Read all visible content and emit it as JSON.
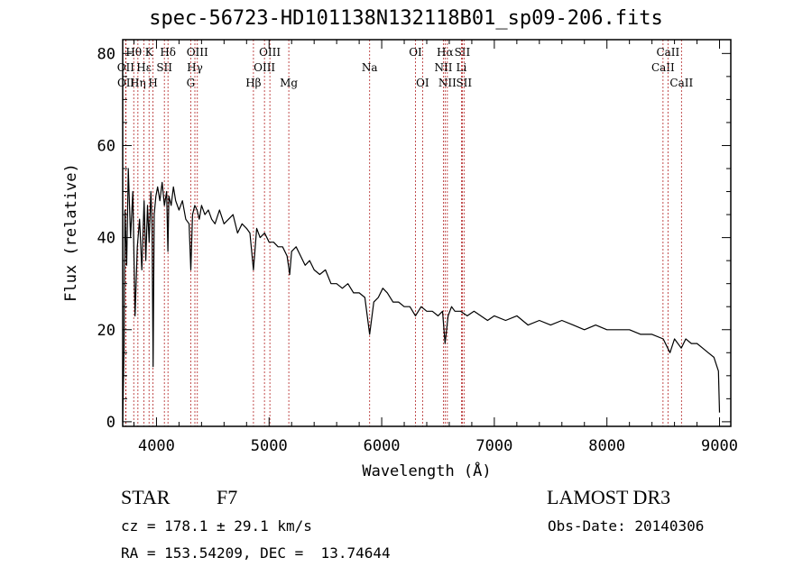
{
  "chart_data": {
    "type": "line",
    "title": "spec-56723-HD101138N132118B01_sp09-206.fits",
    "xlabel": "Wavelength (Å)",
    "ylabel": "Flux (relative)",
    "xlim": [
      3700,
      9100
    ],
    "ylim": [
      -1,
      83
    ],
    "xticks": [
      4000,
      5000,
      6000,
      7000,
      8000,
      9000
    ],
    "yticks": [
      0,
      20,
      40,
      60,
      80
    ],
    "grid": false,
    "series": [
      {
        "name": "flux",
        "x": [
          3700,
          3712,
          3720,
          3735,
          3750,
          3770,
          3790,
          3810,
          3830,
          3850,
          3870,
          3890,
          3905,
          3920,
          3935,
          3950,
          3960,
          3970,
          3980,
          3995,
          4010,
          4030,
          4050,
          4070,
          4090,
          4101,
          4110,
          4130,
          4150,
          4170,
          4200,
          4230,
          4260,
          4290,
          4305,
          4320,
          4340,
          4360,
          4380,
          4400,
          4430,
          4460,
          4490,
          4520,
          4560,
          4600,
          4640,
          4680,
          4720,
          4760,
          4800,
          4830,
          4861,
          4890,
          4920,
          4960,
          5000,
          5040,
          5080,
          5120,
          5160,
          5183,
          5200,
          5240,
          5280,
          5320,
          5360,
          5400,
          5450,
          5500,
          5550,
          5600,
          5650,
          5700,
          5750,
          5800,
          5850,
          5893,
          5930,
          5970,
          6010,
          6050,
          6100,
          6150,
          6200,
          6250,
          6300,
          6350,
          6400,
          6450,
          6500,
          6540,
          6563,
          6590,
          6620,
          6650,
          6700,
          6760,
          6820,
          6880,
          6940,
          7000,
          7100,
          7200,
          7300,
          7400,
          7500,
          7600,
          7700,
          7800,
          7900,
          8000,
          8100,
          8200,
          8300,
          8400,
          8500,
          8560,
          8600,
          8660,
          8700,
          8750,
          8800,
          8850,
          8900,
          8950,
          8990,
          9000
        ],
        "y": [
          0,
          16,
          46,
          34,
          55,
          40,
          50,
          23,
          38,
          44,
          33,
          48,
          35,
          47,
          39,
          50,
          43,
          12,
          45,
          49,
          51,
          48,
          52,
          47,
          50,
          37,
          49,
          47,
          51,
          48,
          46,
          48,
          44,
          43,
          33,
          45,
          47,
          46,
          44,
          47,
          45,
          46,
          44,
          43,
          46,
          43,
          44,
          45,
          41,
          43,
          42,
          41,
          33,
          42,
          40,
          41,
          39,
          39,
          38,
          38,
          36,
          32,
          37,
          38,
          36,
          34,
          35,
          33,
          32,
          33,
          30,
          30,
          29,
          30,
          28,
          28,
          27,
          19,
          26,
          27,
          29,
          28,
          26,
          26,
          25,
          25,
          23,
          25,
          24,
          24,
          23,
          24,
          17,
          23,
          25,
          24,
          24,
          23,
          24,
          23,
          22,
          23,
          22,
          23,
          21,
          22,
          21,
          22,
          21,
          20,
          21,
          20,
          20,
          20,
          19,
          19,
          18,
          15,
          18,
          16,
          18,
          17,
          17,
          16,
          15,
          14,
          11,
          2
        ]
      }
    ],
    "line_markers": [
      {
        "label": "OII",
        "wavelength": 3727,
        "row": 2
      },
      {
        "label": "OII",
        "wavelength": 3729,
        "row": 3
      },
      {
        "label": "Hθ",
        "wavelength": 3798,
        "row": 1
      },
      {
        "label": "Hη",
        "wavelength": 3835,
        "row": 3
      },
      {
        "label": "Hε",
        "wavelength": 3889,
        "row": 2
      },
      {
        "label": "K",
        "wavelength": 3934,
        "row": 1
      },
      {
        "label": "H",
        "wavelength": 3969,
        "row": 3
      },
      {
        "label": "SII",
        "wavelength": 4070,
        "row": 2
      },
      {
        "label": "Hδ",
        "wavelength": 4102,
        "row": 1
      },
      {
        "label": "G",
        "wavelength": 4304,
        "row": 3
      },
      {
        "label": "Hγ",
        "wavelength": 4341,
        "row": 2
      },
      {
        "label": "OIII",
        "wavelength": 4363,
        "row": 1
      },
      {
        "label": "Hβ",
        "wavelength": 4861,
        "row": 3
      },
      {
        "label": "OIII",
        "wavelength": 4959,
        "row": 2
      },
      {
        "label": "OIII",
        "wavelength": 5007,
        "row": 1
      },
      {
        "label": "Mg",
        "wavelength": 5175,
        "row": 3
      },
      {
        "label": "Na",
        "wavelength": 5893,
        "row": 2
      },
      {
        "label": "OI",
        "wavelength": 6300,
        "row": 1
      },
      {
        "label": "OI",
        "wavelength": 6363,
        "row": 3
      },
      {
        "label": "NII",
        "wavelength": 6548,
        "row": 2
      },
      {
        "label": "Hα",
        "wavelength": 6563,
        "row": 1
      },
      {
        "label": "NII",
        "wavelength": 6583,
        "row": 3
      },
      {
        "label": "Li",
        "wavelength": 6708,
        "row": 2
      },
      {
        "label": "SII",
        "wavelength": 6716,
        "row": 1
      },
      {
        "label": "SII",
        "wavelength": 6731,
        "row": 3
      },
      {
        "label": "CaII",
        "wavelength": 8498,
        "row": 2
      },
      {
        "label": "CaII",
        "wavelength": 8542,
        "row": 1
      },
      {
        "label": "CaII",
        "wavelength": 8662,
        "row": 3
      }
    ]
  },
  "info": {
    "object_class": "STAR",
    "subclass": "F7",
    "survey": "LAMOST DR3",
    "redshift": "cz = 178.1 ± 29.1 km/s",
    "obs_date": "Obs-Date: 20140306",
    "coordinates": "RA = 153.54209, DEC =  13.74644"
  },
  "colors": {
    "axis": "#000000",
    "spectrum": "#000000",
    "line_marker": "#b22222"
  }
}
